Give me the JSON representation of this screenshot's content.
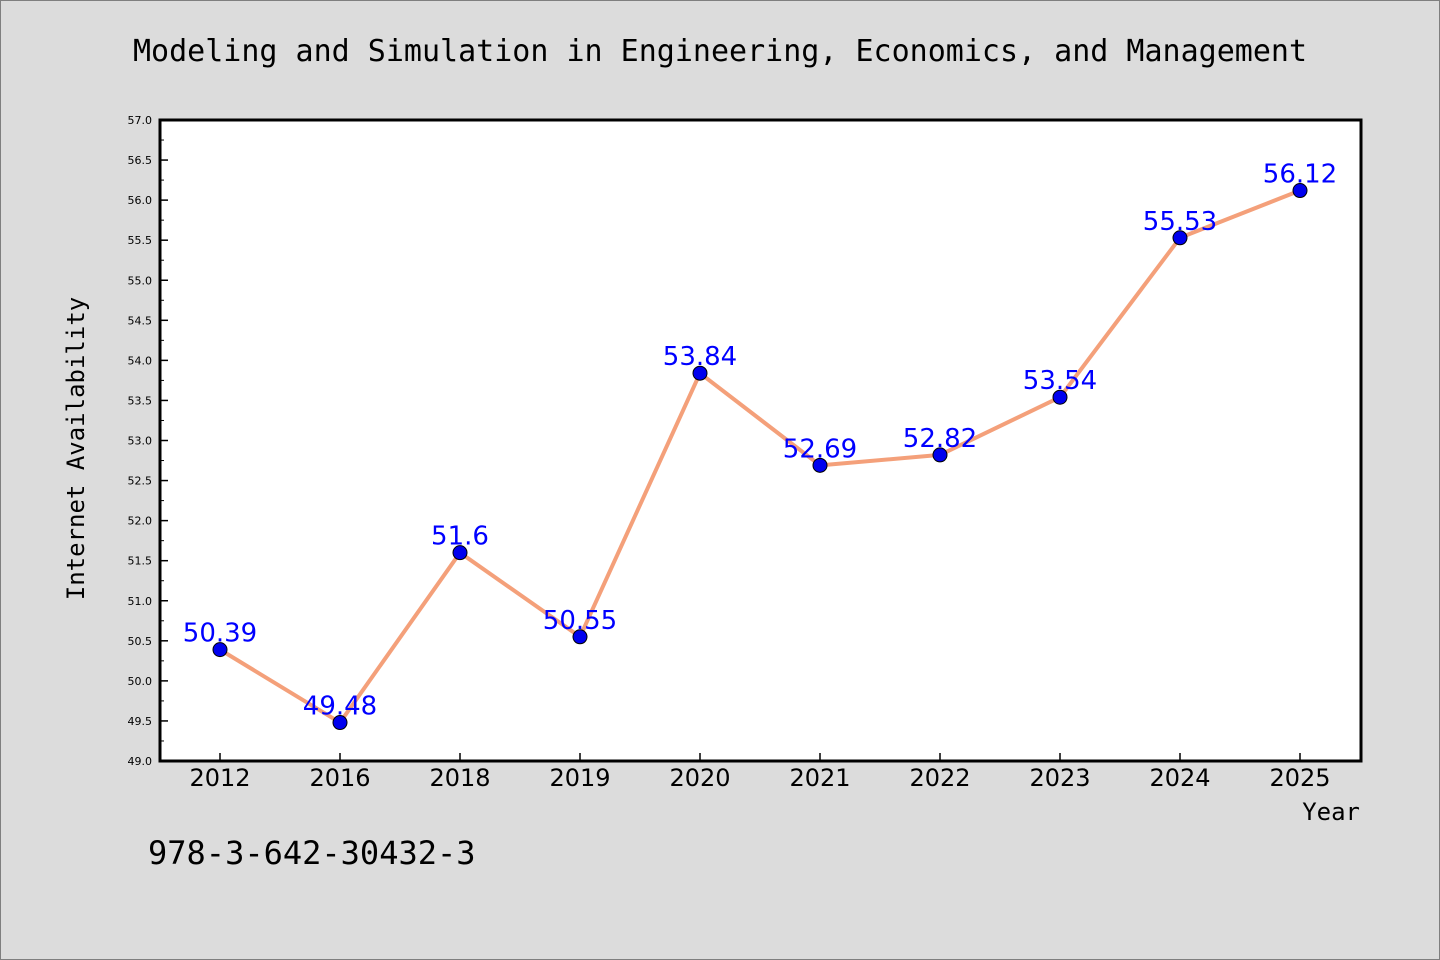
{
  "title": "Modeling and Simulation in Engineering, Economics, and Management",
  "footer": "978-3-642-30432-3",
  "colors": {
    "background": "#dcdcdc",
    "plot_background": "#ffffff",
    "line": "#f4a07a",
    "marker": "#0000ee",
    "data_label": "#0000ff"
  },
  "chart_data": {
    "type": "line",
    "categories": [
      "2012",
      "2016",
      "2018",
      "2019",
      "2020",
      "2021",
      "2022",
      "2023",
      "2024",
      "2025"
    ],
    "series": [
      {
        "values": [
          50.39,
          49.48,
          51.6,
          50.55,
          53.84,
          52.69,
          52.82,
          53.54,
          55.53,
          56.12
        ],
        "labels": [
          "50.39",
          "49.48",
          "51.6",
          "50.55",
          "53.84",
          "52.69",
          "52.82",
          "53.54",
          "55.53",
          "56.12"
        ]
      }
    ],
    "title": "Modeling and Simulation in Engineering, Economics, and Management",
    "xlabel": "Year",
    "ylabel": "Internet Availability",
    "ylim": [
      49.0,
      57.0
    ],
    "yticks": [
      "49.0",
      "49.5",
      "50.0",
      "50.5",
      "51.0",
      "51.5",
      "52.0",
      "52.5",
      "53.0",
      "53.5",
      "54.0",
      "54.5",
      "55.0",
      "55.5",
      "56.0",
      "56.5",
      "57.0"
    ],
    "grid": false,
    "legend": "none"
  }
}
